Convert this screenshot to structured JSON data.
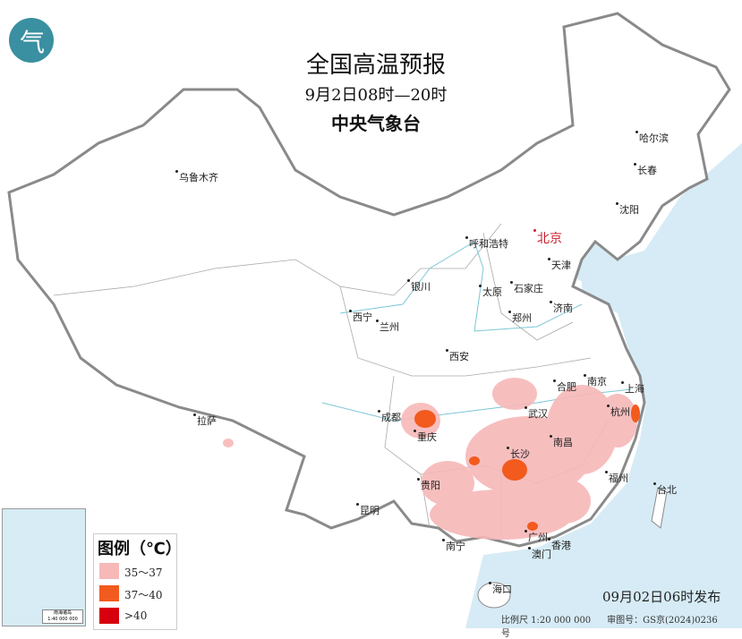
{
  "title": "全国高温预报",
  "period": "9月2日08时—20时",
  "agency": "中央气象台",
  "logo_text": "气",
  "colors": {
    "ocean": "#d6ebf5",
    "land": "#ffffff",
    "border": "#8a8a8a",
    "range_35_37": "#f7b8b8",
    "range_37_40": "#f25a1e",
    "range_gt40": "#d8000f",
    "capital": "#c8202a"
  },
  "cities": [
    {
      "name": "乌鲁木齐"
    },
    {
      "name": "哈尔滨"
    },
    {
      "name": "长春"
    },
    {
      "name": "沈阳"
    },
    {
      "name": "北京",
      "capital": true
    },
    {
      "name": "天津"
    },
    {
      "name": "呼和浩特"
    },
    {
      "name": "银川"
    },
    {
      "name": "太原"
    },
    {
      "name": "石家庄"
    },
    {
      "name": "济南"
    },
    {
      "name": "西宁"
    },
    {
      "name": "兰州"
    },
    {
      "name": "郑州"
    },
    {
      "name": "西安"
    },
    {
      "name": "合肥"
    },
    {
      "name": "南京"
    },
    {
      "name": "上海"
    },
    {
      "name": "成都"
    },
    {
      "name": "武汉"
    },
    {
      "name": "杭州"
    },
    {
      "name": "重庆"
    },
    {
      "name": "长沙"
    },
    {
      "name": "南昌"
    },
    {
      "name": "拉萨"
    },
    {
      "name": "贵阳"
    },
    {
      "name": "福州"
    },
    {
      "name": "台北"
    },
    {
      "name": "昆明"
    },
    {
      "name": "南宁"
    },
    {
      "name": "广州"
    },
    {
      "name": "香港"
    },
    {
      "name": "澳门"
    },
    {
      "name": "海口"
    }
  ],
  "legend": {
    "title": "图例（℃）",
    "items": [
      {
        "label": "35～37"
      },
      {
        "label": "37～40"
      },
      {
        "label": ">40"
      }
    ]
  },
  "inset": {
    "label_line1": "南海诸岛",
    "label_line2": "1:40 000 000"
  },
  "issued": "09月02日06时发布",
  "scale": "比例尺 1:20 000 000",
  "map_number": "审图号：GS京(2024)0236号"
}
